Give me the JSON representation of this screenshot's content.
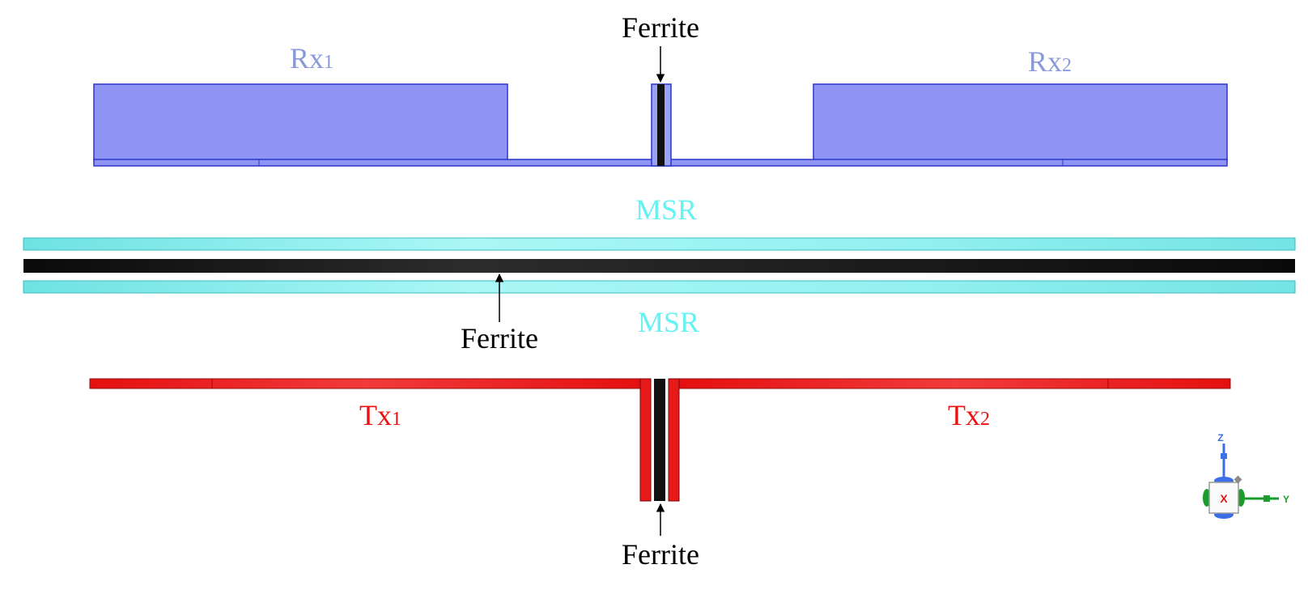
{
  "labels": {
    "rx1_main": "Rx",
    "rx1_sub": "1",
    "rx2_main": "Rx",
    "rx2_sub": "2",
    "ferrite_top": "Ferrite",
    "msr_top": "MSR",
    "ferrite_mid": "Ferrite",
    "msr_bottom": "MSR",
    "tx1_main": "Tx",
    "tx1_sub": "1",
    "tx2_main": "Tx",
    "tx2_sub": "2",
    "ferrite_bottom": "Ferrite"
  },
  "axis_triad": {
    "z": "Z",
    "y": "Y",
    "x": "X"
  },
  "colors": {
    "rx_fill": "#9095f5",
    "rx_stroke": "#2a36c8",
    "rx_label": "#8a9ad8",
    "msr_fill": "#8ff0f0",
    "msr_label": "#66f2f2",
    "ferrite": "#111111",
    "tx_fill": "#e8191b",
    "tx_label": "#ee1111",
    "axis_z": "#3a6fe8",
    "axis_y": "#1c9c2c",
    "axis_x": "#e01818"
  }
}
